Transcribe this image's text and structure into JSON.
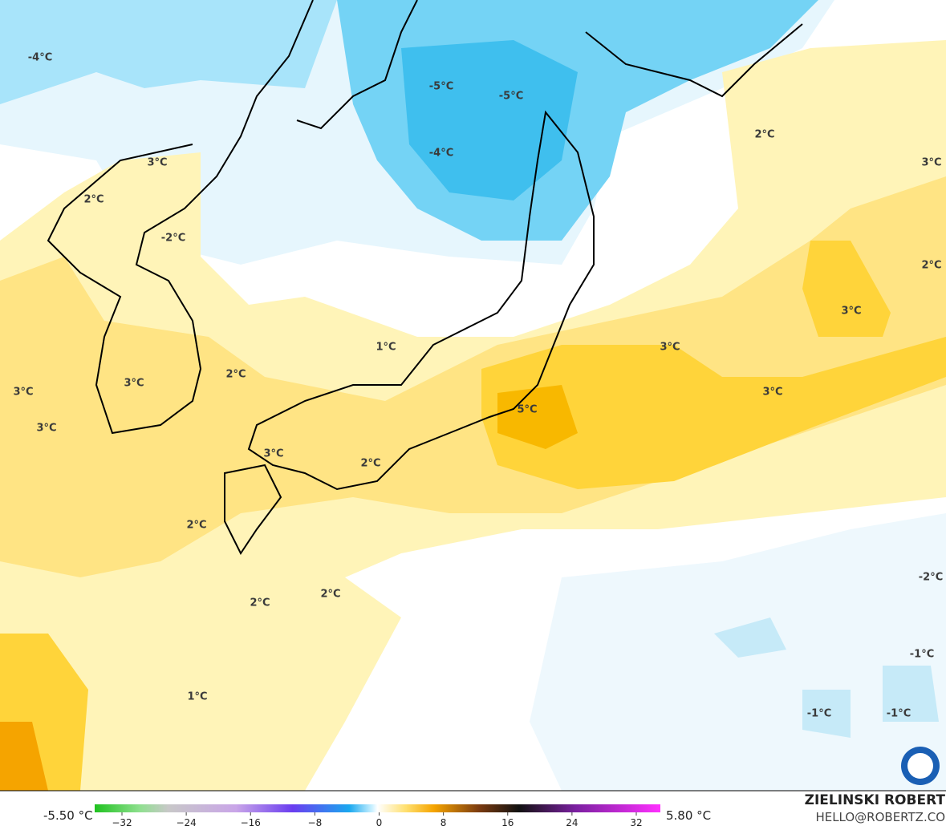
{
  "map": {
    "labels": [
      "-4°C",
      "-5°C",
      "-5°C",
      "-4°C",
      "2°C",
      "3°C",
      "3°C",
      "2°C",
      "-2°C",
      "2°C",
      "3°C",
      "1°C",
      "3°C",
      "2°C",
      "3°C",
      "3°C",
      "3°C",
      "3°C",
      "5°C",
      "3°C",
      "2°C",
      "2°C",
      "-2°C",
      "2°C",
      "2°C",
      "-1°C",
      "1°C",
      "-1°C",
      "-1°C"
    ]
  },
  "colorbar": {
    "min_label": "-5.50 °C",
    "max_label": "5.80 °C",
    "ticks": [
      {
        "value": -32,
        "label": "−32"
      },
      {
        "value": -24,
        "label": "−24"
      },
      {
        "value": -16,
        "label": "−16"
      },
      {
        "value": -8,
        "label": "−8"
      },
      0,
      8,
      16,
      24,
      32
    ]
  },
  "credit": {
    "name": "ZIELINSKI ROBERT",
    "email": "HELLO@ROBERTZ.CO"
  }
}
